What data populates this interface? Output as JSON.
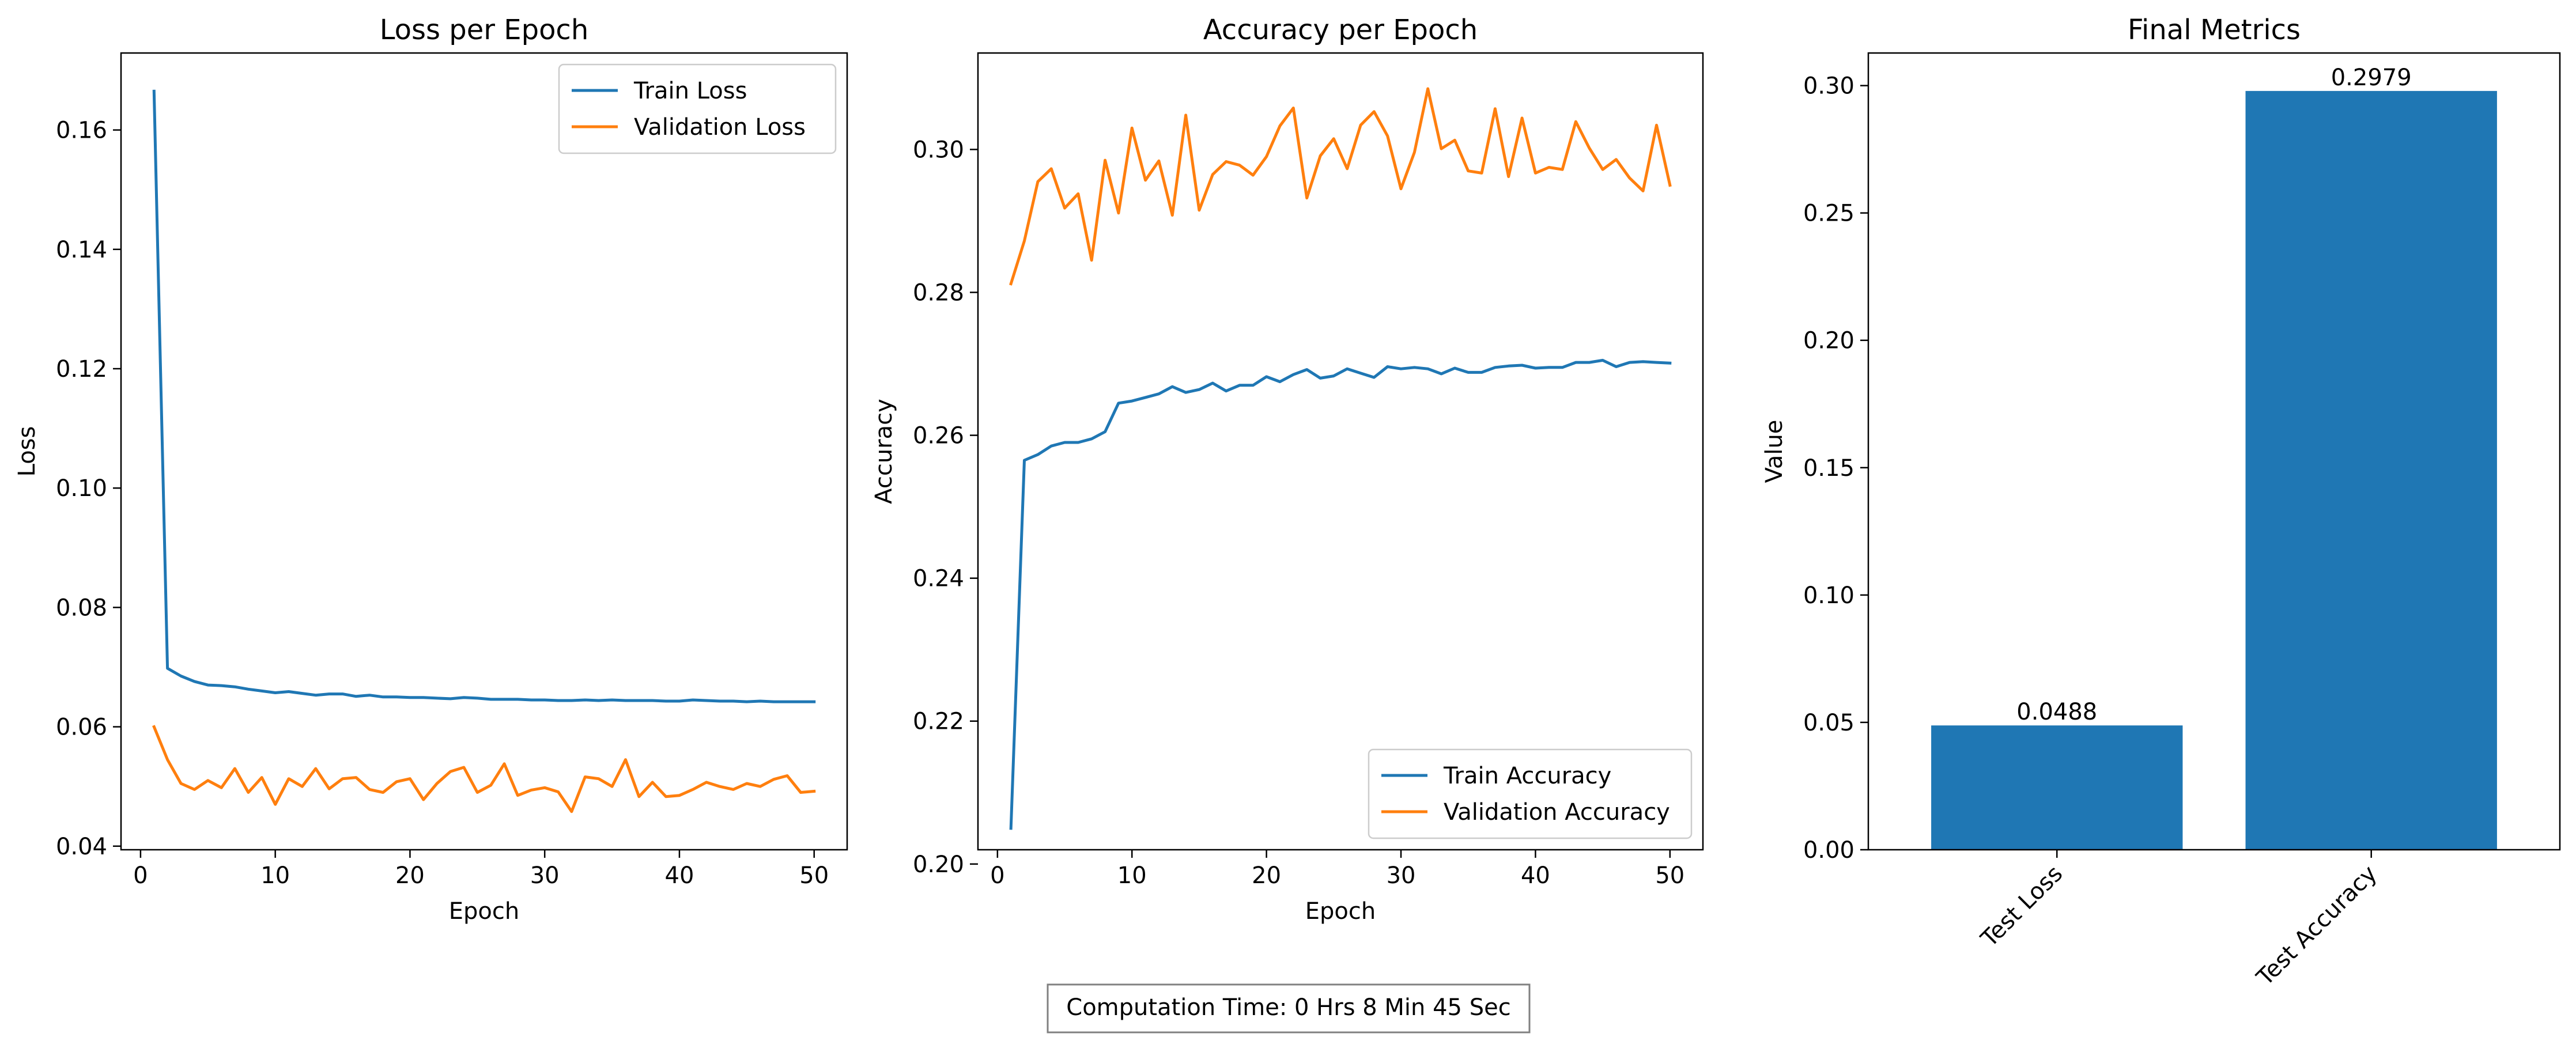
{
  "colors": {
    "blue": "#1f77b4",
    "orange": "#ff7f0e",
    "frame": "#000000",
    "footer_border": "#808080"
  },
  "footer": {
    "text": "Computation Time: 0 Hrs 8 Min 45 Sec"
  },
  "chart_data": [
    {
      "type": "line",
      "title": "Loss per Epoch",
      "xlabel": "Epoch",
      "ylabel": "Loss",
      "xlim": [
        -1.45,
        52.45
      ],
      "ylim": [
        0.0394,
        0.1729
      ],
      "xticks": [
        0,
        10,
        20,
        30,
        40,
        50
      ],
      "yticks": [
        0.04,
        0.06,
        0.08,
        0.1,
        0.12,
        0.14,
        0.16
      ],
      "ytick_labels": [
        "0.04",
        "0.06",
        "0.08",
        "0.10",
        "0.12",
        "0.14",
        "0.16"
      ],
      "grid": false,
      "legend": "upper-right",
      "x": [
        1,
        2,
        3,
        4,
        5,
        6,
        7,
        8,
        9,
        10,
        11,
        12,
        13,
        14,
        15,
        16,
        17,
        18,
        19,
        20,
        21,
        22,
        23,
        24,
        25,
        26,
        27,
        28,
        29,
        30,
        31,
        32,
        33,
        34,
        35,
        36,
        37,
        38,
        39,
        40,
        41,
        42,
        43,
        44,
        45,
        46,
        47,
        48,
        49,
        50
      ],
      "series": [
        {
          "name": "Train Loss",
          "color": "#1f77b4",
          "values": [
            0.1665,
            0.0698,
            0.0685,
            0.0676,
            0.067,
            0.0669,
            0.0667,
            0.0663,
            0.066,
            0.0657,
            0.0659,
            0.0656,
            0.0653,
            0.0655,
            0.0655,
            0.0651,
            0.0653,
            0.065,
            0.065,
            0.0649,
            0.0649,
            0.0648,
            0.0647,
            0.0649,
            0.0648,
            0.0646,
            0.0646,
            0.0646,
            0.0645,
            0.0645,
            0.0644,
            0.0644,
            0.0645,
            0.0644,
            0.0645,
            0.0644,
            0.0644,
            0.0644,
            0.0643,
            0.0643,
            0.0645,
            0.0644,
            0.0643,
            0.0643,
            0.0642,
            0.0643,
            0.0642,
            0.0642,
            0.0642,
            0.0642
          ]
        },
        {
          "name": "Validation Loss",
          "color": "#ff7f0e",
          "values": [
            0.06,
            0.0545,
            0.0505,
            0.0495,
            0.051,
            0.0498,
            0.053,
            0.049,
            0.0515,
            0.047,
            0.0513,
            0.05,
            0.053,
            0.0496,
            0.0513,
            0.0515,
            0.0495,
            0.049,
            0.0508,
            0.0513,
            0.0478,
            0.0505,
            0.0525,
            0.0532,
            0.049,
            0.0502,
            0.0538,
            0.0485,
            0.0494,
            0.0498,
            0.0491,
            0.0458,
            0.0516,
            0.0513,
            0.05,
            0.0545,
            0.0483,
            0.0507,
            0.0483,
            0.0485,
            0.0495,
            0.0507,
            0.05,
            0.0495,
            0.0505,
            0.05,
            0.0512,
            0.0518,
            0.049,
            0.0492
          ]
        }
      ]
    },
    {
      "type": "line",
      "title": "Accuracy per Epoch",
      "xlabel": "Epoch",
      "ylabel": "Accuracy",
      "xlim": [
        -1.45,
        52.45
      ],
      "ylim": [
        0.202,
        0.3135
      ],
      "xticks": [
        0,
        10,
        20,
        30,
        40,
        50
      ],
      "yticks": [
        0.2,
        0.22,
        0.24,
        0.26,
        0.28,
        0.3
      ],
      "ytick_labels": [
        "0.20",
        "0.22",
        "0.24",
        "0.26",
        "0.28",
        "0.30"
      ],
      "grid": false,
      "legend": "lower-right",
      "x": [
        1,
        2,
        3,
        4,
        5,
        6,
        7,
        8,
        9,
        10,
        11,
        12,
        13,
        14,
        15,
        16,
        17,
        18,
        19,
        20,
        21,
        22,
        23,
        24,
        25,
        26,
        27,
        28,
        29,
        30,
        31,
        32,
        33,
        34,
        35,
        36,
        37,
        38,
        39,
        40,
        41,
        42,
        43,
        44,
        45,
        46,
        47,
        48,
        49,
        50
      ],
      "series": [
        {
          "name": "Train Accuracy",
          "color": "#1f77b4",
          "values": [
            0.205,
            0.2565,
            0.2573,
            0.2585,
            0.259,
            0.259,
            0.2595,
            0.2605,
            0.2645,
            0.2648,
            0.2653,
            0.2658,
            0.2668,
            0.266,
            0.2664,
            0.2673,
            0.2662,
            0.267,
            0.267,
            0.2682,
            0.2675,
            0.2685,
            0.2692,
            0.268,
            0.2683,
            0.2693,
            0.2687,
            0.2681,
            0.2696,
            0.2693,
            0.2695,
            0.2693,
            0.2686,
            0.2694,
            0.2688,
            0.2688,
            0.2695,
            0.2697,
            0.2698,
            0.2694,
            0.2695,
            0.2695,
            0.2702,
            0.2702,
            0.2705,
            0.2696,
            0.2702,
            0.2703,
            0.2702,
            0.2701
          ]
        },
        {
          "name": "Validation Accuracy",
          "color": "#ff7f0e",
          "values": [
            0.2812,
            0.2872,
            0.2955,
            0.2973,
            0.2918,
            0.2938,
            0.2845,
            0.2985,
            0.2911,
            0.303,
            0.2957,
            0.2984,
            0.2908,
            0.3048,
            0.2915,
            0.2965,
            0.2983,
            0.2978,
            0.2964,
            0.299,
            0.3033,
            0.3058,
            0.2932,
            0.2991,
            0.3015,
            0.2973,
            0.3034,
            0.3053,
            0.3019,
            0.2945,
            0.2996,
            0.3085,
            0.3001,
            0.3013,
            0.297,
            0.2967,
            0.3057,
            0.2962,
            0.3044,
            0.2967,
            0.2975,
            0.2972,
            0.3039,
            0.3002,
            0.2972,
            0.2986,
            0.296,
            0.2942,
            0.3034,
            0.295
          ]
        }
      ]
    },
    {
      "type": "bar",
      "title": "Final Metrics",
      "ylabel": "Value",
      "ylim": [
        0,
        0.3128
      ],
      "yticks": [
        0.0,
        0.05,
        0.1,
        0.15,
        0.2,
        0.25,
        0.3
      ],
      "ytick_labels": [
        "0.00",
        "0.05",
        "0.10",
        "0.15",
        "0.20",
        "0.25",
        "0.30"
      ],
      "grid": false,
      "categories": [
        "Test Loss",
        "Test Accuracy"
      ],
      "values": [
        0.0488,
        0.2979
      ],
      "value_labels": [
        "0.0488",
        "0.2979"
      ],
      "color": "#1f77b4"
    }
  ]
}
